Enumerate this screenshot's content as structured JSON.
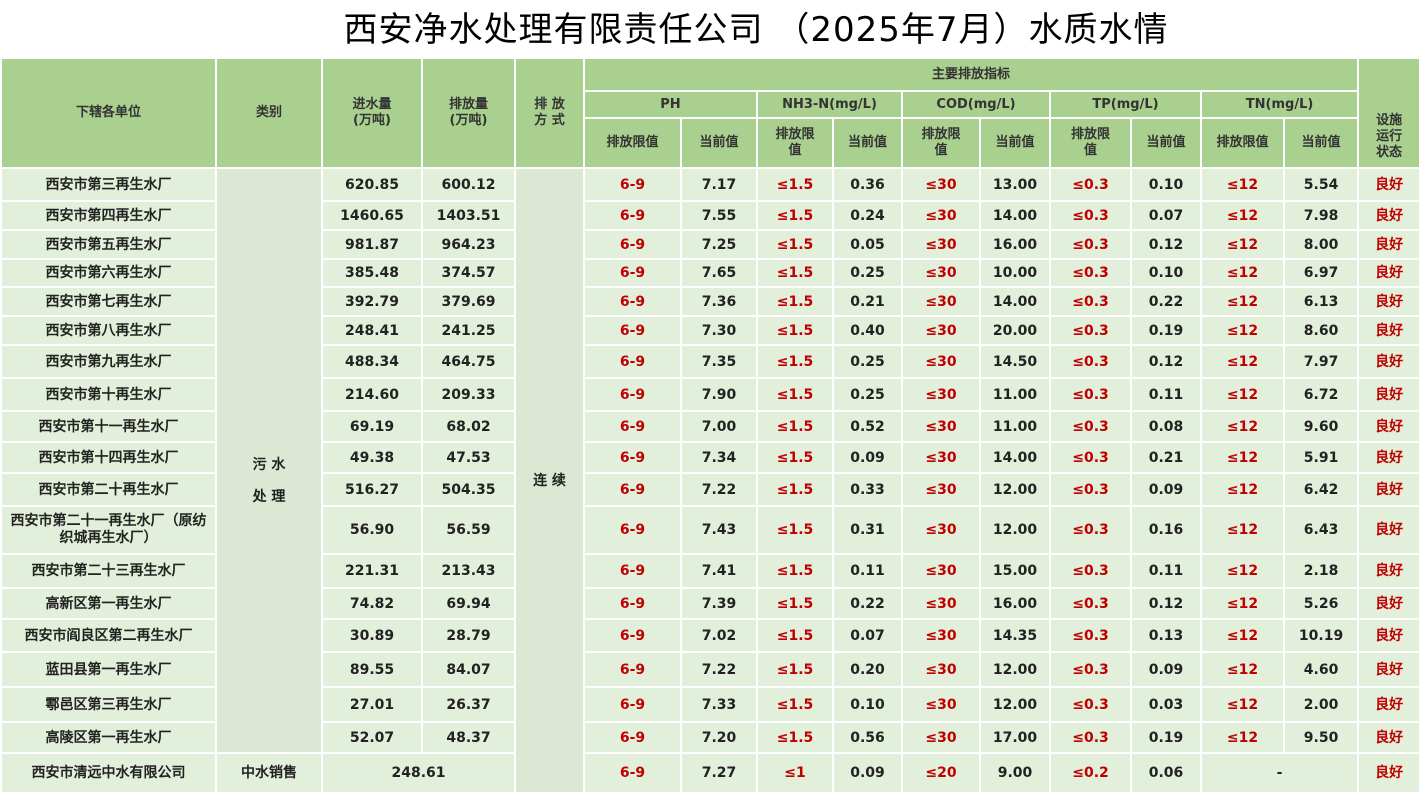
{
  "title": "西安净水处理有限责任公司 （2025年7月）水质水情",
  "headers": {
    "unit": "下辖各单位",
    "category": "类别",
    "inflow": "进水量\n(万吨)",
    "discharge": "排放量\n(万吨)",
    "method": "排 放\n方 式",
    "main_indicators": "主要排放指标",
    "status": "设施\n运行\n状态",
    "params": [
      "PH",
      "NH3-N(mg/L)",
      "COD(mg/L)",
      "TP(mg/L)",
      "TN(mg/L)"
    ],
    "limit": "排放限值",
    "limit_split": "排放限\n值",
    "current": "当前值"
  },
  "category_sewage": "污 水\n\n处 理",
  "method_value": "连 续",
  "limits": {
    "ph": "6-9",
    "nh3": "≤1.5",
    "cod": "≤30",
    "tp": "≤0.3",
    "tn": "≤12"
  },
  "status_value": "良好",
  "rows": [
    {
      "unit": "西安市第三再生水厂",
      "in": "620.85",
      "out": "600.12",
      "ph": "7.17",
      "nh3": "0.36",
      "cod": "13.00",
      "tp": "0.10",
      "tn": "5.54"
    },
    {
      "unit": "西安市第四再生水厂",
      "in": "1460.65",
      "out": "1403.51",
      "ph": "7.55",
      "nh3": "0.24",
      "cod": "14.00",
      "tp": "0.07",
      "tn": "7.98"
    },
    {
      "unit": "西安市第五再生水厂",
      "in": "981.87",
      "out": "964.23",
      "ph": "7.25",
      "nh3": "0.05",
      "cod": "16.00",
      "tp": "0.12",
      "tn": "8.00"
    },
    {
      "unit": "西安市第六再生水厂",
      "in": "385.48",
      "out": "374.57",
      "ph": "7.65",
      "nh3": "0.25",
      "cod": "10.00",
      "tp": "0.10",
      "tn": "6.97"
    },
    {
      "unit": "西安市第七再生水厂",
      "in": "392.79",
      "out": "379.69",
      "ph": "7.36",
      "nh3": "0.21",
      "cod": "14.00",
      "tp": "0.22",
      "tn": "6.13"
    },
    {
      "unit": "西安市第八再生水厂",
      "in": "248.41",
      "out": "241.25",
      "ph": "7.30",
      "nh3": "0.40",
      "cod": "20.00",
      "tp": "0.19",
      "tn": "8.60"
    },
    {
      "unit": "西安市第九再生水厂",
      "in": "488.34",
      "out": "464.75",
      "ph": "7.35",
      "nh3": "0.25",
      "cod": "14.50",
      "tp": "0.12",
      "tn": "7.97"
    },
    {
      "unit": "西安市第十再生水厂",
      "in": "214.60",
      "out": "209.33",
      "ph": "7.90",
      "nh3": "0.25",
      "cod": "11.00",
      "tp": "0.11",
      "tn": "6.72"
    },
    {
      "unit": "西安市第十一再生水厂",
      "in": "69.19",
      "out": "68.02",
      "ph": "7.00",
      "nh3": "0.52",
      "cod": "11.00",
      "tp": "0.08",
      "tn": "9.60"
    },
    {
      "unit": "西安市第十四再生水厂",
      "in": "49.38",
      "out": "47.53",
      "ph": "7.34",
      "nh3": "0.09",
      "cod": "14.00",
      "tp": "0.21",
      "tn": "5.91"
    },
    {
      "unit": "西安市第二十再生水厂",
      "in": "516.27",
      "out": "504.35",
      "ph": "7.22",
      "nh3": "0.33",
      "cod": "12.00",
      "tp": "0.09",
      "tn": "6.42"
    },
    {
      "unit": "西安市第二十一再生水厂（原纺织城再生水厂）",
      "in": "56.90",
      "out": "56.59",
      "ph": "7.43",
      "nh3": "0.31",
      "cod": "12.00",
      "tp": "0.16",
      "tn": "6.43"
    },
    {
      "unit": "西安市第二十三再生水厂",
      "in": "221.31",
      "out": "213.43",
      "ph": "7.41",
      "nh3": "0.11",
      "cod": "15.00",
      "tp": "0.11",
      "tn": "2.18"
    },
    {
      "unit": "高新区第一再生水厂",
      "in": "74.82",
      "out": "69.94",
      "ph": "7.39",
      "nh3": "0.22",
      "cod": "16.00",
      "tp": "0.12",
      "tn": "5.26"
    },
    {
      "unit": "西安市阎良区第二再生水厂",
      "in": "30.89",
      "out": "28.79",
      "ph": "7.02",
      "nh3": "0.07",
      "cod": "14.35",
      "tp": "0.13",
      "tn": "10.19"
    },
    {
      "unit": "蓝田县第一再生水厂",
      "in": "89.55",
      "out": "84.07",
      "ph": "7.22",
      "nh3": "0.20",
      "cod": "12.00",
      "tp": "0.09",
      "tn": "4.60"
    },
    {
      "unit": "鄠邑区第三再生水厂",
      "in": "27.01",
      "out": "26.37",
      "ph": "7.33",
      "nh3": "0.10",
      "cod": "12.00",
      "tp": "0.03",
      "tn": "2.00"
    },
    {
      "unit": "高陵区第一再生水厂",
      "in": "52.07",
      "out": "48.37",
      "ph": "7.20",
      "nh3": "0.56",
      "cod": "17.00",
      "tp": "0.19",
      "tn": "9.50"
    }
  ],
  "last_row": {
    "unit": "西安市清远中水有限公司",
    "category": "中水销售",
    "volume": "248.61",
    "ph_limit": "6-9",
    "ph": "7.27",
    "nh3_limit": "≤1",
    "nh3": "0.09",
    "cod_limit": "≤20",
    "cod": "9.00",
    "tp_limit": "≤0.2",
    "tp": "0.06",
    "tn": "-",
    "status": "良好"
  },
  "colors": {
    "header_bg": "#a9d08e",
    "cell_bg": "#e2efda",
    "limit_text": "#c00000"
  }
}
